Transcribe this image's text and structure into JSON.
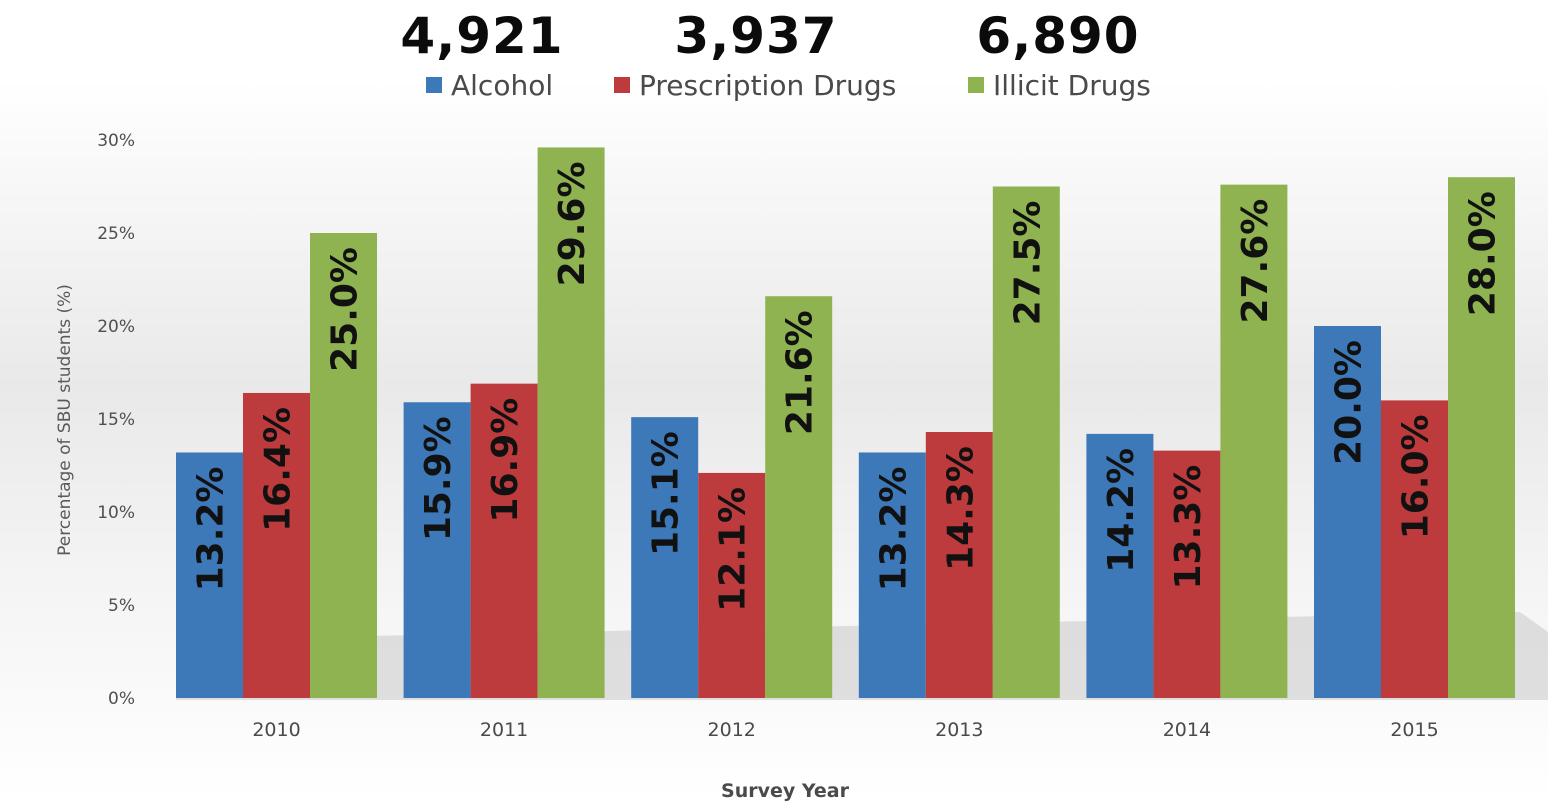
{
  "headline_numbers": [
    "4,921",
    "3,937",
    "6,890"
  ],
  "colors": {
    "Alcohol": "#3d78b8",
    "Prescription Drugs": "#bd3b3d",
    "Illicit Drugs": "#8fb350"
  },
  "chart_data": {
    "type": "bar",
    "xlabel": "Survey Year",
    "ylabel": "Percentage of SBU students (%)",
    "ylim": [
      0,
      30
    ],
    "yticks": [
      "0%",
      "5%",
      "10%",
      "15%",
      "20%",
      "25%",
      "30%"
    ],
    "categories": [
      "2010",
      "2011",
      "2012",
      "2013",
      "2014",
      "2015"
    ],
    "legend_position": "top",
    "grid": false,
    "series": [
      {
        "name": "Alcohol",
        "values": [
          13.2,
          15.9,
          15.1,
          13.2,
          14.2,
          20.0
        ],
        "labels": [
          "13.2%",
          "15.9%",
          "15.1%",
          "13.2%",
          "14.2%",
          "20.0%"
        ]
      },
      {
        "name": "Prescription Drugs",
        "values": [
          16.4,
          16.9,
          12.1,
          14.3,
          13.3,
          16.0
        ],
        "labels": [
          "16.4%",
          "16.9%",
          "12.1%",
          "14.3%",
          "13.3%",
          "16.0%"
        ]
      },
      {
        "name": "Illicit Drugs",
        "values": [
          25.0,
          29.6,
          21.6,
          27.5,
          27.6,
          28.0
        ],
        "labels": [
          "25.0%",
          "29.6%",
          "21.6%",
          "27.5%",
          "27.6%",
          "28.0%"
        ]
      }
    ]
  }
}
